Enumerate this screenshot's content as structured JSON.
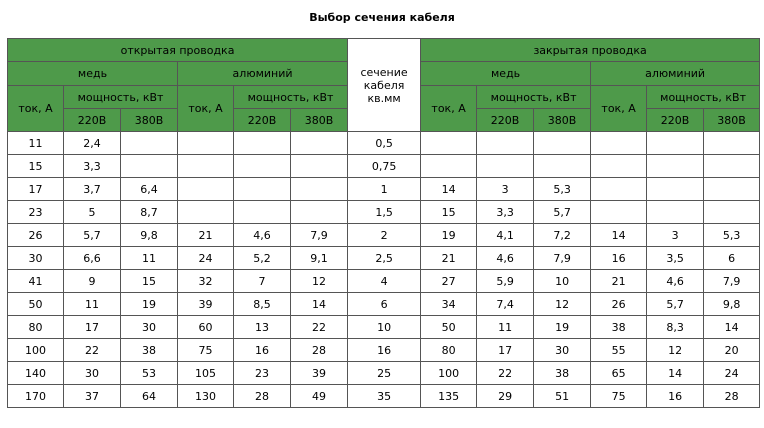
{
  "title": "Выбор сечения кабеля",
  "headers": {
    "open_wiring": "открытая проводка",
    "closed_wiring": "закрытая проводка",
    "copper": "медь",
    "aluminum": "алюминий",
    "section": "сечение кабеля кв.мм",
    "current": "ток, А",
    "power": "мощность, кВт",
    "v220": "220В",
    "v380": "380В"
  },
  "rows": [
    [
      "11",
      "2,4",
      "",
      "",
      "",
      "",
      "0,5",
      "",
      "",
      "",
      "",
      "",
      ""
    ],
    [
      "15",
      "3,3",
      "",
      "",
      "",
      "",
      "0,75",
      "",
      "",
      "",
      "",
      "",
      ""
    ],
    [
      "17",
      "3,7",
      "6,4",
      "",
      "",
      "",
      "1",
      "14",
      "3",
      "5,3",
      "",
      "",
      ""
    ],
    [
      "23",
      "5",
      "8,7",
      "",
      "",
      "",
      "1,5",
      "15",
      "3,3",
      "5,7",
      "",
      "",
      ""
    ],
    [
      "26",
      "5,7",
      "9,8",
      "21",
      "4,6",
      "7,9",
      "2",
      "19",
      "4,1",
      "7,2",
      "14",
      "3",
      "5,3"
    ],
    [
      "30",
      "6,6",
      "11",
      "24",
      "5,2",
      "9,1",
      "2,5",
      "21",
      "4,6",
      "7,9",
      "16",
      "3,5",
      "6"
    ],
    [
      "41",
      "9",
      "15",
      "32",
      "7",
      "12",
      "4",
      "27",
      "5,9",
      "10",
      "21",
      "4,6",
      "7,9"
    ],
    [
      "50",
      "11",
      "19",
      "39",
      "8,5",
      "14",
      "6",
      "34",
      "7,4",
      "12",
      "26",
      "5,7",
      "9,8"
    ],
    [
      "80",
      "17",
      "30",
      "60",
      "13",
      "22",
      "10",
      "50",
      "11",
      "19",
      "38",
      "8,3",
      "14"
    ],
    [
      "100",
      "22",
      "38",
      "75",
      "16",
      "28",
      "16",
      "80",
      "17",
      "30",
      "55",
      "12",
      "20"
    ],
    [
      "140",
      "30",
      "53",
      "105",
      "23",
      "39",
      "25",
      "100",
      "22",
      "38",
      "65",
      "14",
      "24"
    ],
    [
      "170",
      "37",
      "64",
      "130",
      "28",
      "49",
      "35",
      "135",
      "29",
      "51",
      "75",
      "16",
      "28"
    ]
  ]
}
